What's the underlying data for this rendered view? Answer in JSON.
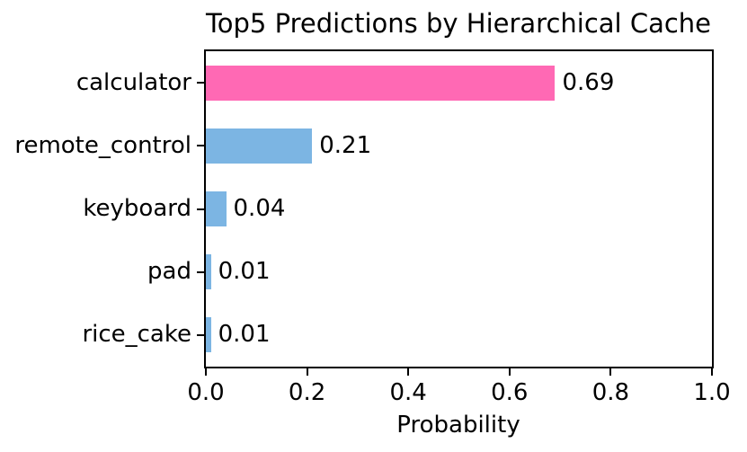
{
  "figure": {
    "background_color": "#ffffff",
    "text_color": "#000000",
    "axis_color": "#000000"
  },
  "chart_data": {
    "type": "bar",
    "orientation": "horizontal",
    "title": "Top5 Predictions by Hierarchical Cache",
    "xlabel": "Probability",
    "ylabel": "",
    "categories": [
      "calculator",
      "remote_control",
      "keyboard",
      "pad",
      "rice_cake"
    ],
    "values": [
      0.69,
      0.21,
      0.04,
      0.01,
      0.01
    ],
    "bar_value_labels": [
      "0.69",
      "0.21",
      "0.04",
      "0.01",
      "0.01"
    ],
    "bar_colors": [
      "#FF69B4",
      "#7CB5E3",
      "#7CB5E3",
      "#7CB5E3",
      "#7CB5E3"
    ],
    "highlight_color": "#FF69B4",
    "default_bar_color": "#7CB5E3",
    "xlim": [
      0.0,
      1.0
    ],
    "xticks": [
      0.0,
      0.2,
      0.4,
      0.6,
      0.8,
      1.0
    ],
    "xtick_labels": [
      "0.0",
      "0.2",
      "0.4",
      "0.6",
      "0.8",
      "1.0"
    ],
    "grid": false,
    "legend_position": "none"
  }
}
